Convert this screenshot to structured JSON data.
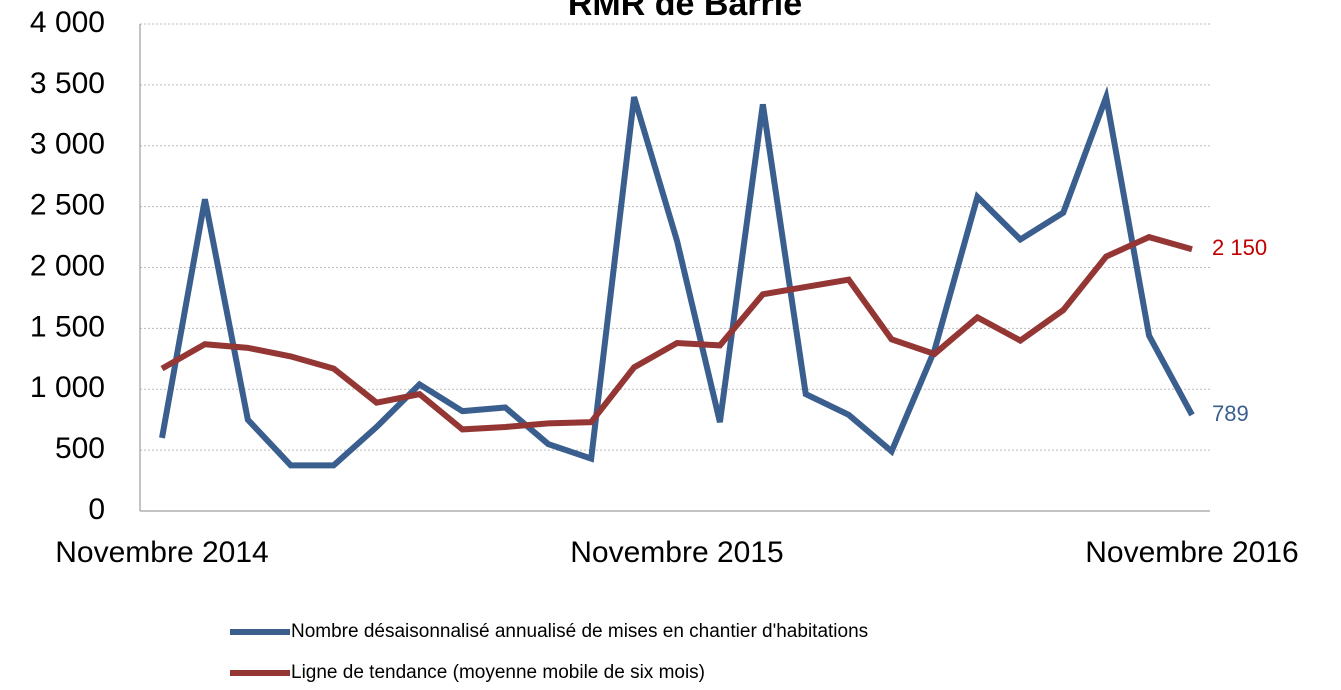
{
  "chart_data": {
    "type": "line",
    "title": "RMR de Barrie",
    "categories": [
      "Novembre 2014",
      null,
      null,
      null,
      null,
      null,
      null,
      null,
      null,
      null,
      null,
      null,
      "Novembre 2015",
      null,
      null,
      null,
      null,
      null,
      null,
      null,
      null,
      null,
      null,
      null,
      "Novembre 2016"
    ],
    "series": [
      {
        "name": "Nombre désaisonnalisé annualisé de mises en chantier d'habitations",
        "color": "#3a5f8f",
        "values": [
          600,
          2560,
          750,
          375,
          375,
          690,
          1040,
          820,
          850,
          550,
          430,
          3400,
          2220,
          730,
          3340,
          960,
          790,
          490,
          1320,
          2580,
          2230,
          2450,
          3400,
          1440,
          789
        ],
        "value_labels": [
          null,
          null,
          null,
          null,
          null,
          null,
          null,
          null,
          null,
          null,
          null,
          null,
          null,
          null,
          null,
          null,
          null,
          null,
          null,
          null,
          null,
          null,
          null,
          null,
          "789"
        ]
      },
      {
        "name": "Ligne de tendance (moyenne mobile de six mois)",
        "color": "#943634",
        "values": [
          1170,
          1370,
          1340,
          1270,
          1170,
          890,
          960,
          670,
          690,
          720,
          730,
          1180,
          1380,
          1360,
          1780,
          1840,
          1900,
          1410,
          1290,
          1590,
          1400,
          1650,
          2090,
          2250,
          2150
        ],
        "value_labels": [
          null,
          null,
          null,
          null,
          null,
          null,
          null,
          null,
          null,
          null,
          null,
          null,
          null,
          null,
          null,
          null,
          null,
          null,
          null,
          null,
          null,
          null,
          null,
          null,
          "2 150"
        ],
        "label_color": "#c00000"
      }
    ],
    "ylim": [
      0,
      4000
    ],
    "yticks": [
      0,
      500,
      {
        "value": 1000,
        "label": "1 000"
      },
      {
        "value": 1500,
        "label": "1 500"
      },
      {
        "value": 2000,
        "label": "2 000"
      },
      {
        "value": 2500,
        "label": "2 500"
      },
      {
        "value": 3000,
        "label": "3 000"
      },
      {
        "value": 3500,
        "label": "3 500"
      },
      {
        "value": 4000,
        "label": "4 000"
      }
    ],
    "grid": true
  }
}
